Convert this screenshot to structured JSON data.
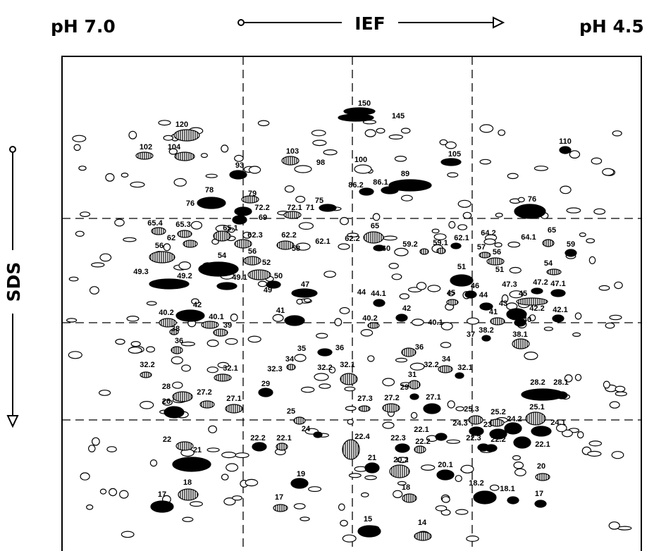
{
  "header": {
    "ph_left": "pH 7.0",
    "axis_label": "IEF",
    "ph_right": "pH 4.5"
  },
  "side_label": "SDS",
  "spots": [
    "150",
    "145",
    "120",
    "110",
    "102",
    "104",
    "103",
    "105",
    "100",
    "98",
    "93",
    "89",
    "86.2",
    "86.1",
    "78",
    "76",
    "79",
    "76",
    "72.2",
    "72.1",
    "71",
    "75",
    "69",
    "65.4",
    "65.3",
    "65.1",
    "62.3",
    "65",
    "62.2",
    "62.1",
    "62",
    "62.2",
    "62.1",
    "64.2",
    "64.1",
    "65",
    "56",
    "56",
    "58",
    "60",
    "59.2",
    "59.1",
    "57",
    "56",
    "59",
    "54",
    "52",
    "54",
    "49.3",
    "49.2",
    "49.1",
    "50",
    "47",
    "49",
    "51",
    "51",
    "47.3",
    "47.2",
    "47.1",
    "46",
    "45",
    "45",
    "44.1",
    "44",
    "43",
    "44",
    "42",
    "42",
    "42.2",
    "42.1",
    "40.2",
    "40.1",
    "41",
    "40.2",
    "40.1",
    "41",
    "40",
    "38",
    "39",
    "37",
    "38.2",
    "38.1",
    "36",
    "35",
    "36",
    "36",
    "34",
    "32.3",
    "32.2",
    "32.1",
    "34",
    "32.2",
    "32.1",
    "32.2",
    "32.1",
    "31",
    "29",
    "28",
    "27.2",
    "27.1",
    "29",
    "28.2",
    "28.1",
    "27.3",
    "27.2",
    "27.1",
    "26",
    "25.3",
    "25.2",
    "25.1",
    "25",
    "24",
    "24.3",
    "24.2",
    "24.1",
    "23",
    "22.1",
    "22.4",
    "22",
    "22.2",
    "22.1",
    "22.3",
    "22.2",
    "22.3",
    "22.2",
    "22.1",
    "21",
    "21",
    "20.2",
    "20.1",
    "20",
    "19",
    "18",
    "18",
    "18.2",
    "18.1",
    "17",
    "17",
    "17",
    "15",
    "14"
  ]
}
